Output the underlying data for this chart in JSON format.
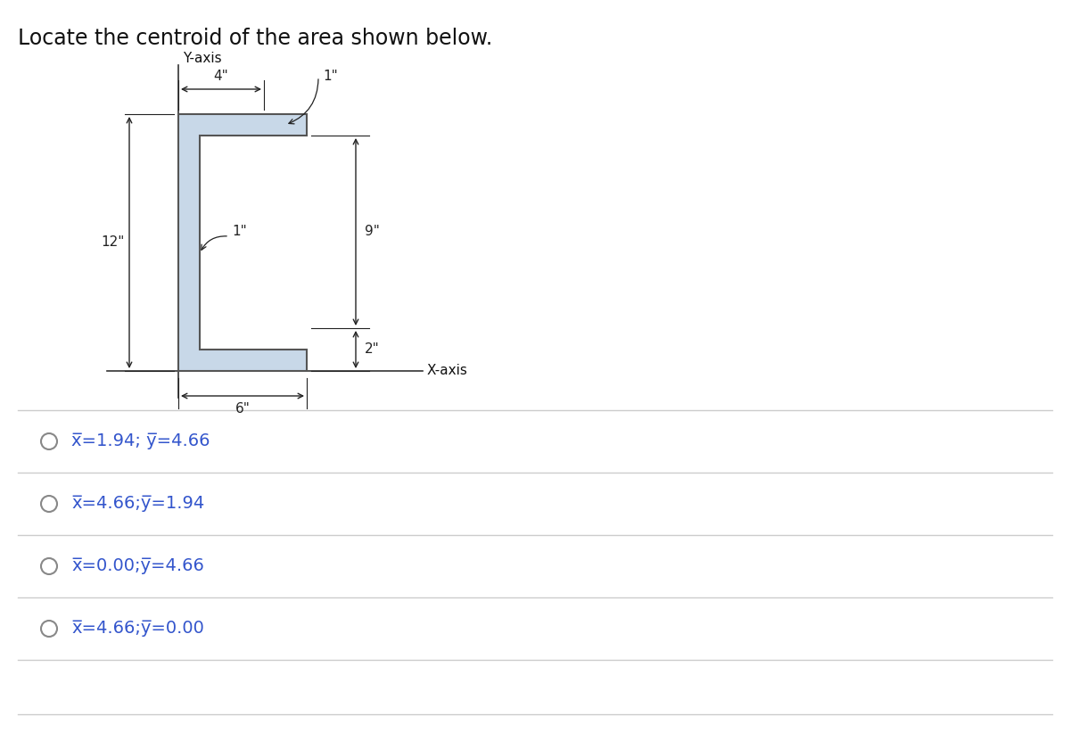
{
  "title": "Locate the centroid of the area shown below.",
  "title_fontsize": 17,
  "background_color": "#ffffff",
  "shape_fill_color": "#c8d8e8",
  "shape_edge_color": "#555555",
  "dim_color": "#222222",
  "axis_color": "#333333",
  "answer_circle_color": "#888888",
  "answer_text_color": "#3355cc",
  "divider_color": "#cccccc",
  "options": [
    "x̅=1.94; y̅=4.66",
    "x̅=4.66;y̅=1.94",
    "x̅=0.00;y̅=4.66",
    "x̅=4.66;y̅=0.00"
  ],
  "option_fontsize": 14,
  "dim_fontsize": 11,
  "yaxis_label": "Y-axis",
  "xaxis_label": "X-axis"
}
